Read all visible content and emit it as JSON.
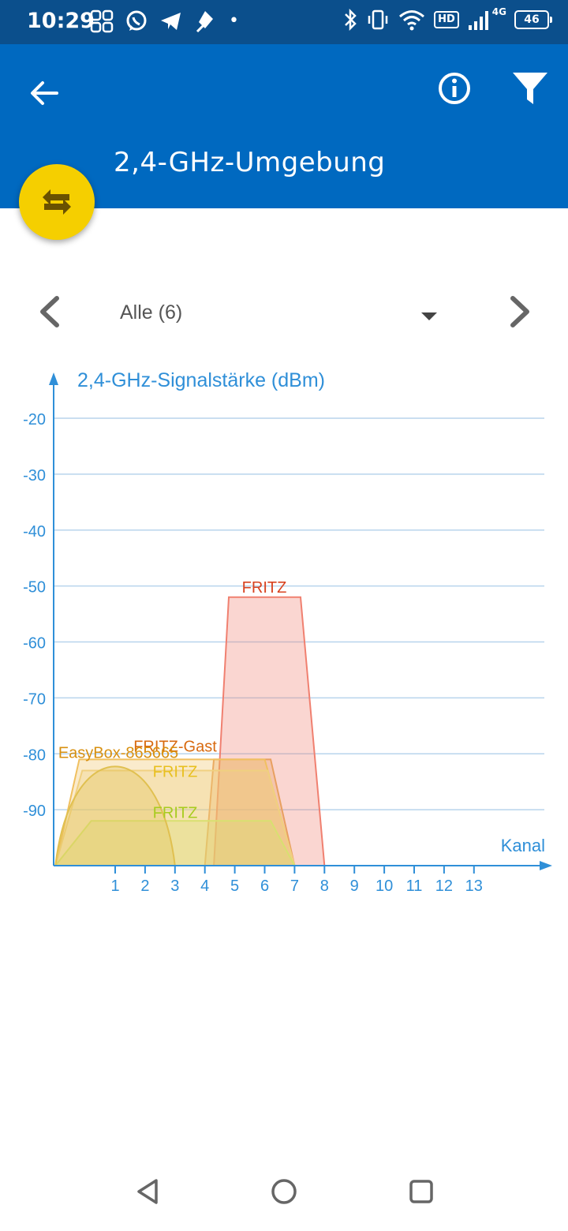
{
  "status_bar": {
    "time": "10:29",
    "hd": "HD",
    "network": "4G",
    "battery": "46"
  },
  "app_bar": {
    "title": "2,4-GHz-Umgebung"
  },
  "selector": {
    "value": "Alle (6)"
  },
  "chart_data": {
    "type": "area",
    "ylabel": "2,4-GHz-Signalstärke (dBm)",
    "xlabel": "Kanal",
    "x_ticks": [
      "1",
      "2",
      "3",
      "4",
      "5",
      "6",
      "7",
      "8",
      "9",
      "10",
      "11",
      "12",
      "13"
    ],
    "y_ticks": [
      "-20",
      "-30",
      "-40",
      "-50",
      "-60",
      "-70",
      "-80",
      "-90"
    ],
    "ylim": [
      -100,
      -20
    ],
    "grid": true,
    "series": [
      {
        "name": "FRITZ",
        "shape": "trapezoid",
        "x_start": 4.3,
        "x_end": 8,
        "plateau_start": 4.8,
        "plateau_end": 7.2,
        "level_dbm": -52,
        "color": "#f08070",
        "label_color": "#d84320"
      },
      {
        "name": "FRITZ-Gast",
        "shape": "trapezoid",
        "x_start": 4,
        "x_end": 7,
        "plateau_start": 4.3,
        "plateau_end": 6.2,
        "level_dbm": -81,
        "color": "#e8a060",
        "label_color": "#d86a10"
      },
      {
        "name": "EasyBox-865665",
        "shape": "trapezoid",
        "x_start": -1,
        "x_end": 7,
        "plateau_start": -0.2,
        "plateau_end": 6,
        "level_dbm": -81,
        "color": "#f0c060",
        "label_color": "#d89010"
      },
      {
        "name": "FRITZ",
        "shape": "trapezoid",
        "x_start": -1,
        "x_end": 7,
        "plateau_start": -0.1,
        "plateau_end": 6.1,
        "level_dbm": -83,
        "color": "#f0d080",
        "label_color": "#e8c020"
      },
      {
        "name": "FRITZ",
        "shape": "trapezoid",
        "x_start": -1,
        "x_end": 7,
        "plateau_start": 0.2,
        "plateau_end": 6.2,
        "level_dbm": -92,
        "color": "#d8e070",
        "label_color": "#a8cc20"
      },
      {
        "name": "",
        "shape": "curve",
        "x_start": -1,
        "x_end": 3,
        "peak_x": 1,
        "level_dbm": -82,
        "color": "#e0c050",
        "label_color": "#c8a020"
      }
    ]
  }
}
